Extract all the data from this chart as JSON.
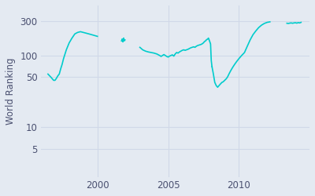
{
  "ylabel": "World Ranking",
  "line_color": "#00cccc",
  "background_color": "#e4eaf2",
  "yticks": [
    5,
    10,
    50,
    100,
    300
  ],
  "ylim_log": [
    2,
    500
  ],
  "xlim": [
    1996.0,
    2015.0
  ],
  "xticks": [
    2000,
    2005,
    2010
  ],
  "grid_color": "#d0d8e8",
  "segments": [
    {
      "years": [
        1996.5,
        1996.7,
        1996.9,
        1997.0,
        1997.1,
        1997.2,
        1997.3,
        1997.4,
        1997.5,
        1997.6,
        1997.8,
        1998.0,
        1998.2,
        1998.4,
        1998.6,
        1998.8,
        1999.0,
        1999.2,
        1999.4,
        1999.6,
        1999.8,
        2000.0
      ],
      "ranks": [
        55,
        50,
        45,
        45,
        48,
        52,
        55,
        65,
        75,
        90,
        120,
        150,
        175,
        200,
        210,
        215,
        210,
        205,
        200,
        195,
        190,
        185
      ]
    },
    {
      "years": [
        2001.7,
        2001.75,
        2001.8,
        2001.85,
        2001.9,
        2001.95
      ],
      "ranks": [
        160,
        170,
        155,
        175,
        160,
        165
      ]
    },
    {
      "years": [
        2003.0,
        2003.1,
        2003.2,
        2003.4,
        2003.6,
        2003.8,
        2004.0,
        2004.2,
        2004.4,
        2004.5,
        2004.6,
        2004.7,
        2004.8,
        2004.9,
        2005.0,
        2005.1,
        2005.2,
        2005.3,
        2005.4,
        2005.5,
        2005.6,
        2005.7,
        2005.8,
        2005.9,
        2006.0,
        2006.1,
        2006.2,
        2006.3,
        2006.4,
        2006.5,
        2006.6,
        2006.7,
        2006.8,
        2006.9,
        2007.0,
        2007.1,
        2007.2,
        2007.3,
        2007.4,
        2007.45,
        2007.5,
        2007.55,
        2007.6,
        2007.65,
        2007.7,
        2007.8,
        2007.85,
        2007.9,
        2007.95,
        2008.0,
        2008.05,
        2008.1
      ],
      "ranks": [
        130,
        125,
        120,
        115,
        112,
        110,
        108,
        105,
        100,
        97,
        100,
        103,
        100,
        97,
        95,
        98,
        100,
        102,
        98,
        105,
        110,
        108,
        112,
        115,
        118,
        120,
        118,
        120,
        122,
        125,
        128,
        130,
        132,
        130,
        135,
        138,
        140,
        142,
        145,
        148,
        150,
        155,
        158,
        160,
        165,
        170,
        175,
        165,
        155,
        145,
        85,
        70
      ]
    },
    {
      "years": [
        2008.1,
        2008.2,
        2008.25,
        2008.3,
        2008.35,
        2008.4,
        2008.45,
        2008.5,
        2008.55,
        2008.6,
        2008.7,
        2008.8,
        2008.9,
        2009.0,
        2009.1,
        2009.2,
        2009.3,
        2009.4,
        2009.5,
        2009.6,
        2009.7,
        2009.8,
        2009.9,
        2010.0,
        2010.1,
        2010.2,
        2010.4,
        2010.6,
        2010.8,
        2011.0,
        2011.2,
        2011.4,
        2011.6,
        2011.8,
        2012.0,
        2012.2
      ],
      "ranks": [
        70,
        55,
        48,
        42,
        40,
        38,
        37,
        36,
        37,
        38,
        40,
        42,
        43,
        45,
        47,
        50,
        55,
        60,
        65,
        70,
        75,
        80,
        85,
        90,
        95,
        100,
        110,
        135,
        165,
        195,
        220,
        245,
        265,
        280,
        290,
        295
      ]
    },
    {
      "years": [
        2013.4,
        2013.5,
        2013.6,
        2013.7,
        2013.8,
        2013.9,
        2014.0,
        2014.1,
        2014.2,
        2014.3,
        2014.4
      ],
      "ranks": [
        282,
        280,
        283,
        285,
        282,
        285,
        287,
        283,
        288,
        285,
        290
      ]
    }
  ]
}
